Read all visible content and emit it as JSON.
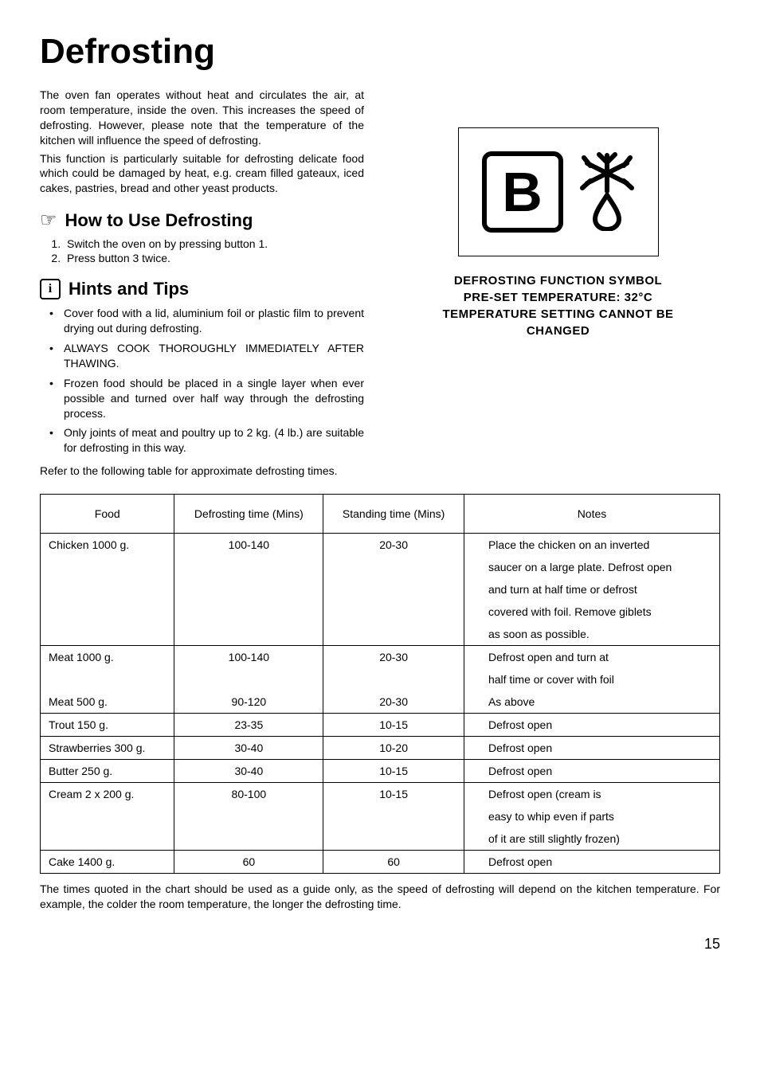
{
  "title": "Defrosting",
  "intro1": "The oven fan operates without heat and circulates the air, at room temperature, inside the oven. This increases the speed of defrosting. However, please note that the temperature of the kitchen will influence the speed of defrosting.",
  "intro2": "This function is particularly suitable for defrosting delicate food which could be damaged by heat, e.g. cream filled gateaux, iced cakes, pastries, bread and other yeast products.",
  "howto": {
    "heading": "How to Use Defrosting",
    "steps": [
      "Switch the oven on by pressing button 1.",
      "Press button 3 twice."
    ]
  },
  "hints": {
    "heading": "Hints and Tips",
    "items": [
      "Cover food with a lid, aluminium foil or plastic film to prevent drying out during defrosting.",
      "ALWAYS COOK THOROUGHLY IMMEDIATELY AFTER THAWING.",
      "Frozen food should be placed in a single layer when ever possible and turned over half way through the defrosting process.",
      "Only joints of meat and poultry up to 2 kg. (4 lb.) are suitable for defrosting in this way."
    ],
    "refer": "Refer to the following table for approximate defrosting times."
  },
  "symbol": {
    "letter": "B",
    "caption1": "DEFROSTING FUNCTION SYMBOL",
    "caption2": "PRE-SET TEMPERATURE: 32°C",
    "caption3": "TEMPERATURE SETTING CANNOT BE",
    "caption4": "CHANGED"
  },
  "table": {
    "headers": [
      "Food",
      "Defrosting time (Mins)",
      "Standing time (Mins)",
      "Notes"
    ],
    "rows": [
      {
        "food": "Chicken 1000 g.",
        "defrost": "100-140",
        "stand": "20-30",
        "notes": [
          "Place the chicken on an inverted",
          "saucer on a large plate. Defrost open",
          "and turn at half time or defrost",
          "covered with foil. Remove giblets",
          "as soon as possible."
        ]
      },
      {
        "food": "Meat 1000 g.",
        "defrost": "100-140",
        "stand": "20-30",
        "notes": [
          "Defrost open and turn at",
          "half time or cover with foil"
        ],
        "combined_bottom": true
      },
      {
        "food": "Meat 500 g.",
        "defrost": "90-120",
        "stand": "20-30",
        "notes": [
          "As above"
        ],
        "combined_top": true
      },
      {
        "food": "Trout 150 g.",
        "defrost": "23-35",
        "stand": "10-15",
        "notes": [
          "Defrost open"
        ]
      },
      {
        "food": "Strawberries 300 g.",
        "defrost": "30-40",
        "stand": "10-20",
        "notes": [
          "Defrost open"
        ]
      },
      {
        "food": "Butter 250 g.",
        "defrost": "30-40",
        "stand": "10-15",
        "notes": [
          "Defrost open"
        ]
      },
      {
        "food": "Cream 2 x 200 g.",
        "defrost": "80-100",
        "stand": "10-15",
        "notes": [
          "Defrost open (cream is",
          "easy to whip even if parts",
          "of it are still slightly frozen)"
        ]
      },
      {
        "food": "Cake 1400 g.",
        "defrost": "60",
        "stand": "60",
        "notes": [
          "Defrost open"
        ]
      }
    ]
  },
  "footnote": "The times quoted in the chart should be used as a guide only, as the speed of defrosting will depend on the kitchen temperature. For example, the colder the room temperature, the longer the defrosting time.",
  "page": "15"
}
